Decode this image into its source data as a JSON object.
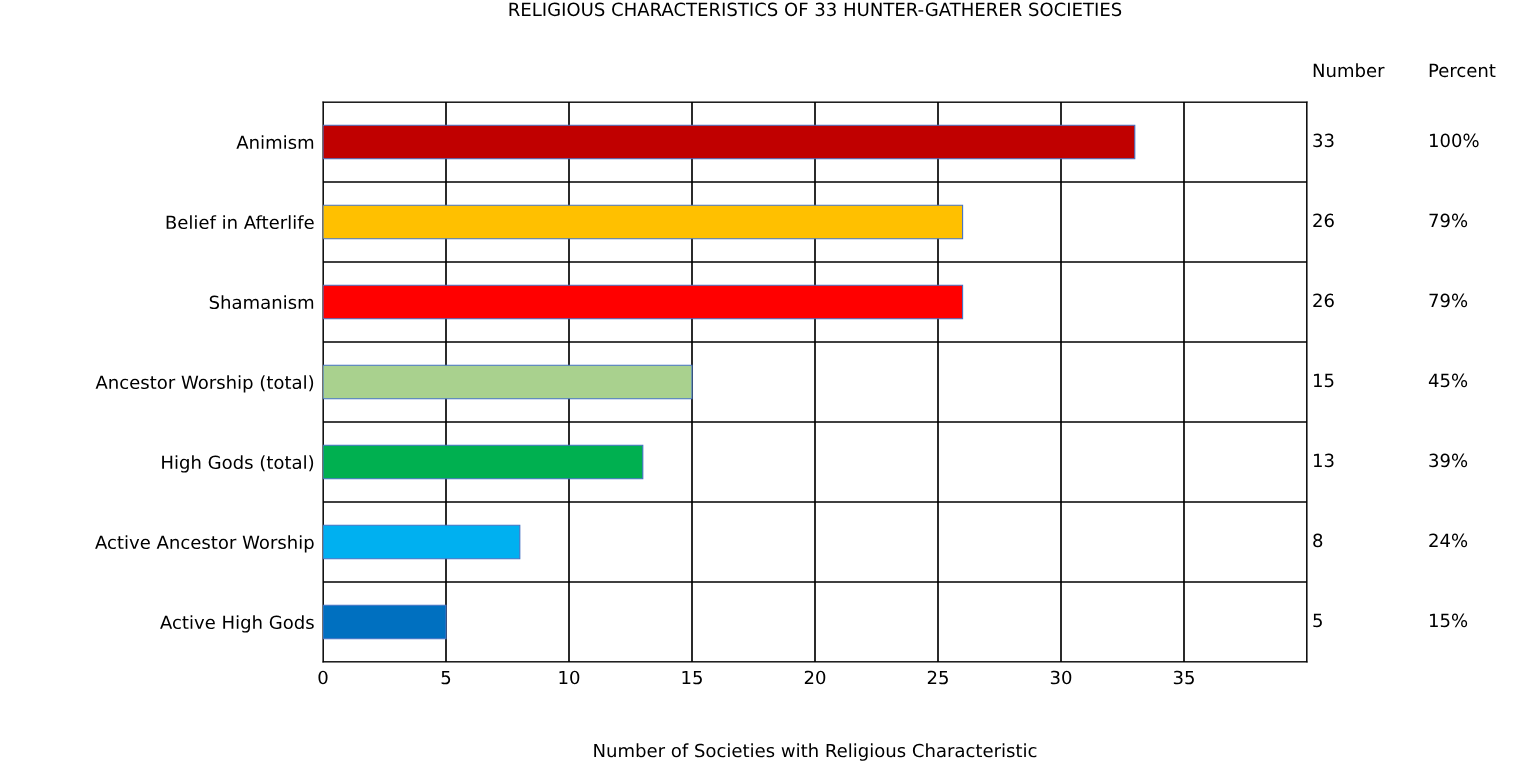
{
  "chart_data": {
    "type": "bar",
    "orientation": "horizontal",
    "title": "RELIGIOUS CHARACTERISTICS OF 33 HUNTER-GATHERER SOCIETIES",
    "xlabel": "Number of Societies with Religious Characteristic",
    "categories": [
      "Animism",
      "Belief in Afterlife",
      "Shamanism",
      "Ancestor Worship (total)",
      "High Gods (total)",
      "Active Ancestor Worship",
      "Active High Gods"
    ],
    "values": [
      33,
      26,
      26,
      15,
      13,
      8,
      5
    ],
    "colors": [
      "#c00000",
      "#ffc000",
      "#ff0000",
      "#a9d18e",
      "#00b050",
      "#00b0f0",
      "#0070c0"
    ],
    "xlim": [
      0,
      40
    ],
    "xticks": [
      0,
      5,
      10,
      15,
      20,
      25,
      30,
      35,
      {
        "value": 40,
        "label": null
      }
    ],
    "grid": true,
    "annotations": [
      "Number",
      "Percent",
      "33",
      "26",
      "26",
      "15",
      "13",
      "8",
      "5",
      "100%",
      "79%",
      "79%",
      "45%",
      "39%",
      "24%",
      "15%"
    ]
  }
}
